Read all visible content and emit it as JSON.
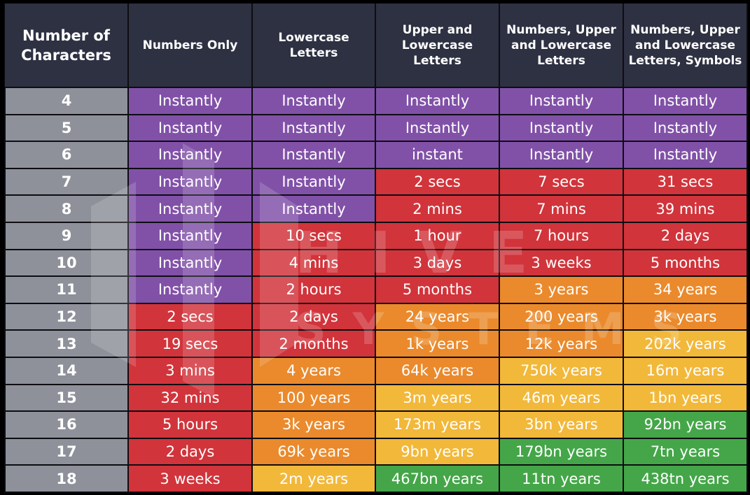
{
  "chart_data": {
    "type": "table",
    "row_header": "Number of Characters",
    "columns": [
      "Numbers Only",
      "Lowercase Letters",
      "Upper and Lowercase Letters",
      "Numbers, Upper and Lowercase Letters",
      "Numbers, Upper and Lowercase Letters, Symbols"
    ],
    "rows": [
      {
        "length": "4",
        "cells": [
          "Instantly",
          "Instantly",
          "Instantly",
          "Instantly",
          "Instantly"
        ]
      },
      {
        "length": "5",
        "cells": [
          "Instantly",
          "Instantly",
          "Instantly",
          "Instantly",
          "Instantly"
        ]
      },
      {
        "length": "6",
        "cells": [
          "Instantly",
          "Instantly",
          "instant",
          "Instantly",
          "Instantly"
        ]
      },
      {
        "length": "7",
        "cells": [
          "Instantly",
          "Instantly",
          "2 secs",
          "7 secs",
          "31 secs"
        ]
      },
      {
        "length": "8",
        "cells": [
          "Instantly",
          "Instantly",
          "2 mins",
          "7 mins",
          "39 mins"
        ]
      },
      {
        "length": "9",
        "cells": [
          "Instantly",
          "10 secs",
          "1 hour",
          "7 hours",
          "2 days"
        ]
      },
      {
        "length": "10",
        "cells": [
          "Instantly",
          "4 mins",
          "3 days",
          "3 weeks",
          "5 months"
        ]
      },
      {
        "length": "11",
        "cells": [
          "Instantly",
          "2 hours",
          "5 months",
          "3 years",
          "34 years"
        ]
      },
      {
        "length": "12",
        "cells": [
          "2 secs",
          "2 days",
          "24 years",
          "200 years",
          "3k years"
        ]
      },
      {
        "length": "13",
        "cells": [
          "19 secs",
          "2 months",
          "1k years",
          "12k years",
          "202k years"
        ]
      },
      {
        "length": "14",
        "cells": [
          "3 mins",
          "4 years",
          "64k years",
          "750k years",
          "16m years"
        ]
      },
      {
        "length": "15",
        "cells": [
          "32 mins",
          "100 years",
          "3m years",
          "46m years",
          "1bn years"
        ]
      },
      {
        "length": "16",
        "cells": [
          "5 hours",
          "3k years",
          "173m years",
          "3bn years",
          "92bn years"
        ]
      },
      {
        "length": "17",
        "cells": [
          "2 days",
          "69k years",
          "9bn years",
          "179bn years",
          "7tn years"
        ]
      },
      {
        "length": "18",
        "cells": [
          "3 weeks",
          "2m years",
          "467bn years",
          "11tn years",
          "438tn years"
        ]
      }
    ],
    "cell_colors": [
      [
        "purple",
        "purple",
        "purple",
        "purple",
        "purple"
      ],
      [
        "purple",
        "purple",
        "purple",
        "purple",
        "purple"
      ],
      [
        "purple",
        "purple",
        "purple",
        "purple",
        "purple"
      ],
      [
        "purple",
        "purple",
        "red",
        "red",
        "red"
      ],
      [
        "purple",
        "purple",
        "red",
        "red",
        "red"
      ],
      [
        "purple",
        "red",
        "red",
        "red",
        "red"
      ],
      [
        "purple",
        "red",
        "red",
        "red",
        "red"
      ],
      [
        "purple",
        "red",
        "red",
        "orange",
        "orange"
      ],
      [
        "red",
        "red",
        "orange",
        "orange",
        "orange"
      ],
      [
        "red",
        "red",
        "orange",
        "orange",
        "yellow"
      ],
      [
        "red",
        "orange",
        "orange",
        "yellow",
        "yellow"
      ],
      [
        "red",
        "orange",
        "yellow",
        "yellow",
        "yellow"
      ],
      [
        "red",
        "orange",
        "yellow",
        "yellow",
        "green"
      ],
      [
        "red",
        "orange",
        "yellow",
        "green",
        "green"
      ],
      [
        "red",
        "yellow",
        "green",
        "green",
        "green"
      ]
    ],
    "color_scale": {
      "purple": "#8151a8",
      "red": "#d1343b",
      "orange": "#ea8a2c",
      "yellow": "#f2b83a",
      "green": "#44a648"
    }
  },
  "watermark": {
    "line1": "HIVE",
    "line2": "SYSTEMS"
  }
}
